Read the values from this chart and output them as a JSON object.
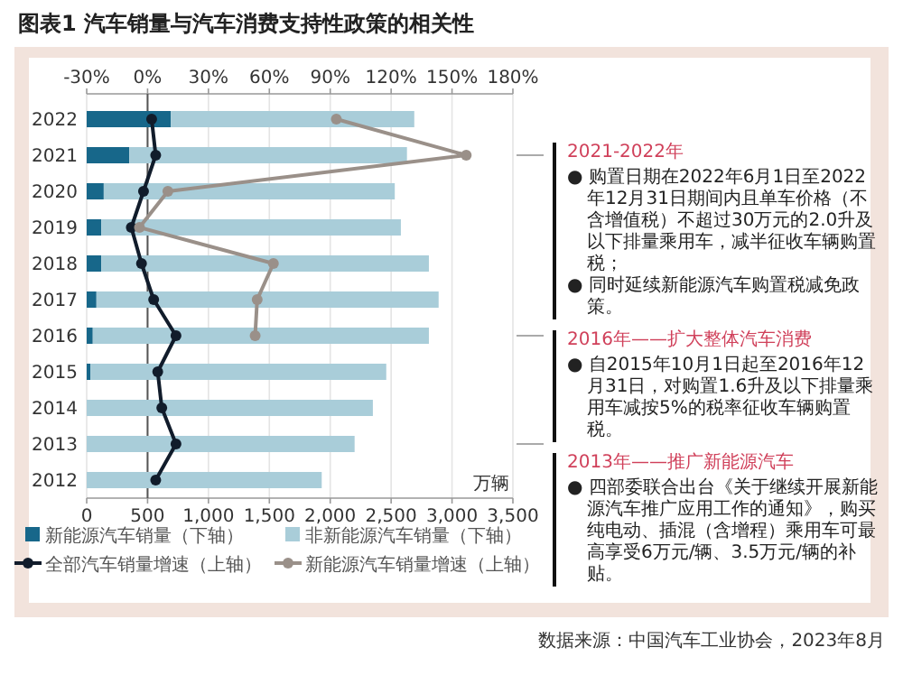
{
  "chart_data": {
    "type": "bar",
    "orientation": "horizontal",
    "stacked": true,
    "title": "图表1 汽车销量与汽车消费支持性政策的相关性",
    "xlabel": "万辆",
    "categories": [
      "2022",
      "2021",
      "2020",
      "2019",
      "2018",
      "2017",
      "2016",
      "2015",
      "2014",
      "2013",
      "2012"
    ],
    "series": [
      {
        "name": "新能源汽车销量（下轴）",
        "type": "bar",
        "color": "#17678a",
        "values": [
          690,
          350,
          140,
          120,
          120,
          80,
          50,
          30,
          null,
          null,
          null
        ]
      },
      {
        "name": "非新能源汽车销量（下轴）",
        "type": "bar",
        "color": "#a9cdd9",
        "values": [
          2000,
          2280,
          2390,
          2460,
          2690,
          2810,
          2760,
          2430,
          2350,
          2200,
          1930
        ]
      },
      {
        "name": "全部汽车销量增速（上轴）",
        "type": "line",
        "axis": "x2",
        "color": "#111c2b",
        "values": [
          2,
          4,
          -2,
          -8,
          -3,
          3,
          14,
          5,
          7,
          14,
          4
        ]
      },
      {
        "name": "新能源汽车销量增速（上轴）",
        "type": "line",
        "axis": "x2",
        "color": "#9a9089",
        "values": [
          93,
          157,
          10,
          -4,
          62,
          54,
          53,
          null,
          null,
          null,
          null
        ]
      }
    ],
    "xlim": [
      0,
      3500
    ],
    "xticks": [
      0,
      500,
      {
        "value": 1000,
        "label": "1,000"
      },
      {
        "value": 1500,
        "label": "1,500"
      },
      {
        "value": 2000,
        "label": "2,000"
      },
      {
        "value": 2500,
        "label": "2,500"
      },
      {
        "value": 3000,
        "label": "3,000"
      },
      {
        "value": 3500,
        "label": "3,500"
      }
    ],
    "x2lim": [
      -30,
      180
    ],
    "x2ticks": [
      {
        "value": -30,
        "label": "-30%"
      },
      {
        "value": 0,
        "label": "0%"
      },
      {
        "value": 30,
        "label": "30%"
      },
      {
        "value": 60,
        "label": "60%"
      },
      {
        "value": 90,
        "label": "90%"
      },
      {
        "value": 120,
        "label": "120%"
      },
      {
        "value": 150,
        "label": "150%"
      },
      {
        "value": 180,
        "label": "180%"
      }
    ],
    "grid": "x",
    "ref_lines": [
      {
        "axis": "x2",
        "value": 0,
        "color": "#555555"
      }
    ],
    "marker": "circle",
    "legend": "bottom",
    "annotations": [
      "数据来源：中国汽车工业协会，2023年8月",
      "2021-2022年\n● 购置日期在2022年6月1日至2022年12月31日期间内且单车价格（不含增值税）不超过30万元的2.0升及以下排量乘用车，减半征收车辆购置税；\n● 同时延续新能源汽车购置税减免政策。",
      "2016年——扩大整体汽车消费\n● 自2015年10月1日起至2016年12月31日，对购置1.6升及以下排量乘用车减按5%的税率征收车辆购置税。",
      "2013年——推广新能源汽车\n● 四部委联合出台《关于继续开展新能源汽车推广应用工作的通知》，购买纯电动、插混（含增程）乘用车可最高享受6万元/辆、3.5万元/辆的补贴。"
    ]
  }
}
